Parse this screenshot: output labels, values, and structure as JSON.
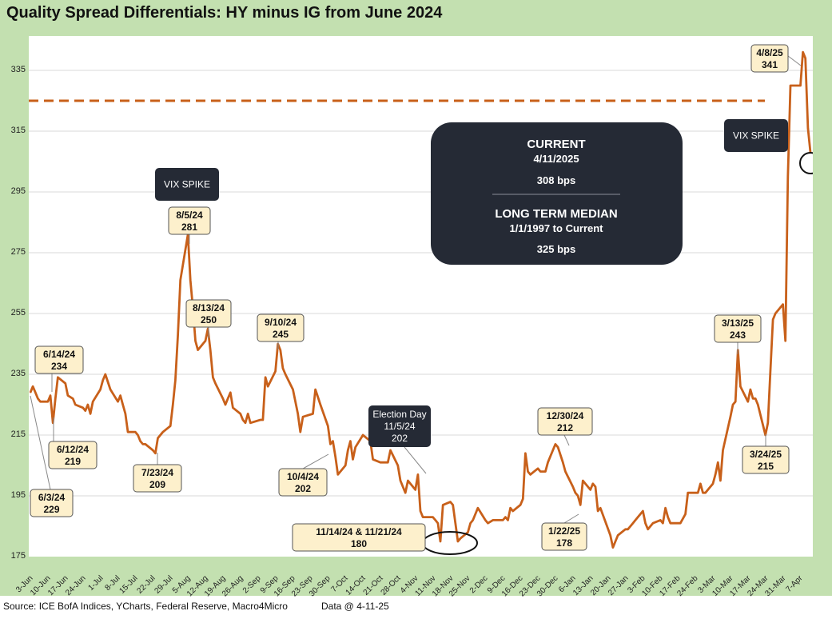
{
  "title": "Quality Spread Differentials: HY minus IG from June 2024",
  "footer": {
    "source": "Source: ICE BofA Indices, YCharts, Federal Reserve, Macro4Micro",
    "data_date": "Data @ 4-11-25"
  },
  "colors": {
    "line": "#c8601a",
    "median_line": "#c8601a",
    "callout_fill": "#fdf0cc",
    "dark_box": "#252a35",
    "background": "#c3e0b0",
    "grid": "#d9d9d9"
  },
  "chart_data": {
    "type": "line",
    "title": "Quality Spread Differentials: HY minus IG from June 2024",
    "ylim": [
      175,
      345
    ],
    "yticks": [
      175,
      195,
      215,
      235,
      255,
      275,
      295,
      315,
      335
    ],
    "grid": "horizontal",
    "x_tick_labels": [
      "3-Jun",
      "10-Jun",
      "17-Jun",
      "24-Jun",
      "1-Jul",
      "8-Jul",
      "15-Jul",
      "22-Jul",
      "29-Jul",
      "5-Aug",
      "12-Aug",
      "19-Aug",
      "26-Aug",
      "2-Sep",
      "9-Sep",
      "16-Sep",
      "23-Sep",
      "30-Sep",
      "7-Oct",
      "14-Oct",
      "21-Oct",
      "28-Oct",
      "4-Nov",
      "11-Nov",
      "18-Nov",
      "25-Nov",
      "2-Dec",
      "9-Dec",
      "16-Dec",
      "23-Dec",
      "30-Dec",
      "6-Jan",
      "13-Jan",
      "20-Jan",
      "27-Jan",
      "3-Feb",
      "10-Feb",
      "17-Feb",
      "24-Feb",
      "3-Mar",
      "10-Mar",
      "17-Mar",
      "24-Mar",
      "31-Mar",
      "7-Apr"
    ],
    "x_start": "2024-06-03",
    "x_end": "2025-04-11",
    "median": {
      "value": 325,
      "style": "dashed"
    },
    "series": [
      {
        "points": [
          [
            "2024-06-03",
            229
          ],
          [
            "2024-06-04",
            231
          ],
          [
            "2024-06-05",
            229
          ],
          [
            "2024-06-06",
            227
          ],
          [
            "2024-06-07",
            226
          ],
          [
            "2024-06-10",
            226
          ],
          [
            "2024-06-11",
            228
          ],
          [
            "2024-06-12",
            219
          ],
          [
            "2024-06-13",
            227
          ],
          [
            "2024-06-14",
            234
          ],
          [
            "2024-06-17",
            232
          ],
          [
            "2024-06-18",
            228
          ],
          [
            "2024-06-20",
            227
          ],
          [
            "2024-06-21",
            225
          ],
          [
            "2024-06-24",
            224
          ],
          [
            "2024-06-25",
            223
          ],
          [
            "2024-06-26",
            225
          ],
          [
            "2024-06-27",
            222
          ],
          [
            "2024-06-28",
            226
          ],
          [
            "2024-07-01",
            230
          ],
          [
            "2024-07-02",
            233
          ],
          [
            "2024-07-03",
            235
          ],
          [
            "2024-07-05",
            230
          ],
          [
            "2024-07-08",
            226
          ],
          [
            "2024-07-09",
            228
          ],
          [
            "2024-07-10",
            225
          ],
          [
            "2024-07-11",
            222
          ],
          [
            "2024-07-12",
            216
          ],
          [
            "2024-07-15",
            216
          ],
          [
            "2024-07-16",
            215
          ],
          [
            "2024-07-17",
            213
          ],
          [
            "2024-07-18",
            212
          ],
          [
            "2024-07-19",
            212
          ],
          [
            "2024-07-22",
            210
          ],
          [
            "2024-07-23",
            209
          ],
          [
            "2024-07-24",
            214
          ],
          [
            "2024-07-26",
            216
          ],
          [
            "2024-07-29",
            218
          ],
          [
            "2024-07-30",
            225
          ],
          [
            "2024-07-31",
            233
          ],
          [
            "2024-08-01",
            248
          ],
          [
            "2024-08-02",
            266
          ],
          [
            "2024-08-05",
            281
          ],
          [
            "2024-08-06",
            266
          ],
          [
            "2024-08-07",
            257
          ],
          [
            "2024-08-08",
            246
          ],
          [
            "2024-08-09",
            243
          ],
          [
            "2024-08-12",
            246
          ],
          [
            "2024-08-13",
            250
          ],
          [
            "2024-08-14",
            243
          ],
          [
            "2024-08-15",
            234
          ],
          [
            "2024-08-16",
            232
          ],
          [
            "2024-08-19",
            227
          ],
          [
            "2024-08-20",
            225
          ],
          [
            "2024-08-21",
            227
          ],
          [
            "2024-08-22",
            229
          ],
          [
            "2024-08-23",
            224
          ],
          [
            "2024-08-26",
            222
          ],
          [
            "2024-08-27",
            220
          ],
          [
            "2024-08-28",
            219
          ],
          [
            "2024-08-29",
            222
          ],
          [
            "2024-08-30",
            219
          ],
          [
            "2024-09-03",
            220
          ],
          [
            "2024-09-04",
            220
          ],
          [
            "2024-09-05",
            234
          ],
          [
            "2024-09-06",
            231
          ],
          [
            "2024-09-09",
            236
          ],
          [
            "2024-09-10",
            245
          ],
          [
            "2024-09-11",
            243
          ],
          [
            "2024-09-12",
            237
          ],
          [
            "2024-09-13",
            235
          ],
          [
            "2024-09-16",
            230
          ],
          [
            "2024-09-18",
            222
          ],
          [
            "2024-09-19",
            216
          ],
          [
            "2024-09-20",
            221
          ],
          [
            "2024-09-24",
            222
          ],
          [
            "2024-09-25",
            230
          ],
          [
            "2024-09-27",
            225
          ],
          [
            "2024-09-30",
            218
          ],
          [
            "2024-10-01",
            212
          ],
          [
            "2024-10-02",
            213
          ],
          [
            "2024-10-03",
            208
          ],
          [
            "2024-10-04",
            202
          ],
          [
            "2024-10-07",
            205
          ],
          [
            "2024-10-08",
            210
          ],
          [
            "2024-10-09",
            213
          ],
          [
            "2024-10-10",
            207
          ],
          [
            "2024-10-11",
            211
          ],
          [
            "2024-10-14",
            215
          ],
          [
            "2024-10-17",
            213
          ],
          [
            "2024-10-18",
            207
          ],
          [
            "2024-10-21",
            206
          ],
          [
            "2024-10-24",
            206
          ],
          [
            "2024-10-25",
            210
          ],
          [
            "2024-10-28",
            205
          ],
          [
            "2024-10-29",
            200
          ],
          [
            "2024-10-30",
            198
          ],
          [
            "2024-10-31",
            196
          ],
          [
            "2024-11-01",
            200
          ],
          [
            "2024-11-04",
            197
          ],
          [
            "2024-11-05",
            202
          ],
          [
            "2024-11-06",
            190
          ],
          [
            "2024-11-07",
            188
          ],
          [
            "2024-11-08",
            188
          ],
          [
            "2024-11-11",
            188
          ],
          [
            "2024-11-12",
            187
          ],
          [
            "2024-11-13",
            186
          ],
          [
            "2024-11-14",
            180
          ],
          [
            "2024-11-15",
            192
          ],
          [
            "2024-11-18",
            193
          ],
          [
            "2024-11-19",
            192
          ],
          [
            "2024-11-20",
            186
          ],
          [
            "2024-11-21",
            180
          ],
          [
            "2024-11-22",
            181
          ],
          [
            "2024-11-25",
            183
          ],
          [
            "2024-11-26",
            186
          ],
          [
            "2024-11-27",
            187
          ],
          [
            "2024-11-29",
            191
          ],
          [
            "2024-12-02",
            187
          ],
          [
            "2024-12-03",
            186
          ],
          [
            "2024-12-05",
            187
          ],
          [
            "2024-12-06",
            187
          ],
          [
            "2024-12-09",
            187
          ],
          [
            "2024-12-10",
            188
          ],
          [
            "2024-12-11",
            187
          ],
          [
            "2024-12-12",
            191
          ],
          [
            "2024-12-13",
            190
          ],
          [
            "2024-12-16",
            192
          ],
          [
            "2024-12-17",
            194
          ],
          [
            "2024-12-18",
            209
          ],
          [
            "2024-12-19",
            203
          ],
          [
            "2024-12-20",
            202
          ],
          [
            "2024-12-23",
            204
          ],
          [
            "2024-12-24",
            203
          ],
          [
            "2024-12-26",
            203
          ],
          [
            "2024-12-27",
            206
          ],
          [
            "2024-12-30",
            212
          ],
          [
            "2024-12-31",
            211
          ],
          [
            "2025-01-02",
            206
          ],
          [
            "2025-01-03",
            203
          ],
          [
            "2025-01-06",
            198
          ],
          [
            "2025-01-07",
            196
          ],
          [
            "2025-01-08",
            195
          ],
          [
            "2025-01-09",
            192
          ],
          [
            "2025-01-10",
            200
          ],
          [
            "2025-01-13",
            197
          ],
          [
            "2025-01-14",
            199
          ],
          [
            "2025-01-15",
            198
          ],
          [
            "2025-01-16",
            190
          ],
          [
            "2025-01-17",
            191
          ],
          [
            "2025-01-21",
            182
          ],
          [
            "2025-01-22",
            178
          ],
          [
            "2025-01-23",
            180
          ],
          [
            "2025-01-24",
            182
          ],
          [
            "2025-01-27",
            184
          ],
          [
            "2025-01-28",
            184
          ],
          [
            "2025-01-29",
            185
          ],
          [
            "2025-01-30",
            186
          ],
          [
            "2025-01-31",
            187
          ],
          [
            "2025-02-03",
            190
          ],
          [
            "2025-02-04",
            186
          ],
          [
            "2025-02-05",
            184
          ],
          [
            "2025-02-06",
            185
          ],
          [
            "2025-02-07",
            186
          ],
          [
            "2025-02-10",
            187
          ],
          [
            "2025-02-11",
            186
          ],
          [
            "2025-02-12",
            191
          ],
          [
            "2025-02-13",
            188
          ],
          [
            "2025-02-14",
            186
          ],
          [
            "2025-02-18",
            186
          ],
          [
            "2025-02-20",
            189
          ],
          [
            "2025-02-21",
            196
          ],
          [
            "2025-02-24",
            196
          ],
          [
            "2025-02-25",
            196
          ],
          [
            "2025-02-26",
            199
          ],
          [
            "2025-02-27",
            196
          ],
          [
            "2025-02-28",
            196
          ],
          [
            "2025-03-03",
            199
          ],
          [
            "2025-03-04",
            202
          ],
          [
            "2025-03-05",
            206
          ],
          [
            "2025-03-06",
            200
          ],
          [
            "2025-03-07",
            210
          ],
          [
            "2025-03-10",
            221
          ],
          [
            "2025-03-11",
            225
          ],
          [
            "2025-03-12",
            226
          ],
          [
            "2025-03-13",
            243
          ],
          [
            "2025-03-14",
            231
          ],
          [
            "2025-03-17",
            226
          ],
          [
            "2025-03-18",
            230
          ],
          [
            "2025-03-19",
            227
          ],
          [
            "2025-03-20",
            227
          ],
          [
            "2025-03-21",
            225
          ],
          [
            "2025-03-24",
            215
          ],
          [
            "2025-03-25",
            219
          ],
          [
            "2025-03-26",
            236
          ],
          [
            "2025-03-27",
            253
          ],
          [
            "2025-03-28",
            255
          ],
          [
            "2025-03-31",
            258
          ],
          [
            "2025-04-01",
            246
          ],
          [
            "2025-04-02",
            300
          ],
          [
            "2025-04-03",
            330
          ],
          [
            "2025-04-04",
            330
          ],
          [
            "2025-04-07",
            330
          ],
          [
            "2025-04-08",
            341
          ],
          [
            "2025-04-09",
            339
          ],
          [
            "2025-04-10",
            316
          ],
          [
            "2025-04-11",
            308
          ]
        ]
      }
    ],
    "annotations": [
      {
        "id": "a-0603",
        "date": "2024-06-03",
        "value": 229,
        "line1": "6/3/24",
        "line2": "229"
      },
      {
        "id": "a-0612",
        "date": "2024-06-12",
        "value": 219,
        "line1": "6/12/24",
        "line2": "219"
      },
      {
        "id": "a-0614",
        "date": "2024-06-14",
        "value": 234,
        "line1": "6/14/24",
        "line2": "234"
      },
      {
        "id": "a-0723",
        "date": "2024-07-23",
        "value": 209,
        "line1": "7/23/24",
        "line2": "209"
      },
      {
        "id": "a-0805",
        "date": "2024-08-05",
        "value": 281,
        "line1": "8/5/24",
        "line2": "281"
      },
      {
        "id": "a-0813",
        "date": "2024-08-13",
        "value": 250,
        "line1": "8/13/24",
        "line2": "250"
      },
      {
        "id": "a-0910",
        "date": "2024-09-10",
        "value": 245,
        "line1": "9/10/24",
        "line2": "245"
      },
      {
        "id": "a-1004",
        "date": "2024-10-04",
        "value": 202,
        "line1": "10/4/24",
        "line2": "202"
      },
      {
        "id": "a-1114",
        "date": "2024-11-14",
        "value": 180,
        "line1": "11/14/24 & 11/21/24",
        "line2": "180"
      },
      {
        "id": "a-1230",
        "date": "2024-12-30",
        "value": 212,
        "line1": "12/30/24",
        "line2": "212"
      },
      {
        "id": "a-0122",
        "date": "2025-01-22",
        "value": 178,
        "line1": "1/22/25",
        "line2": "178"
      },
      {
        "id": "a-0313",
        "date": "2025-03-13",
        "value": 243,
        "line1": "3/13/25",
        "line2": "243"
      },
      {
        "id": "a-0324",
        "date": "2025-03-24",
        "value": 215,
        "line1": "3/24/25",
        "line2": "215"
      },
      {
        "id": "a-0408",
        "date": "2025-04-08",
        "value": 341,
        "line1": "4/8/25",
        "line2": "341"
      }
    ],
    "dark_labels": [
      {
        "id": "vix-1",
        "lines": [
          "VIX SPIKE"
        ]
      },
      {
        "id": "vix-2",
        "lines": [
          "VIX SPIKE"
        ]
      },
      {
        "id": "election",
        "lines": [
          "Election Day",
          "11/5/24",
          "202"
        ]
      }
    ],
    "info_box": {
      "current_heading": "CURRENT",
      "current_date": "4/11/2025",
      "current_value": "308 bps",
      "median_heading": "LONG TERM MEDIAN",
      "median_range": "1/1/1997 to Current",
      "median_value": "325 bps"
    }
  }
}
